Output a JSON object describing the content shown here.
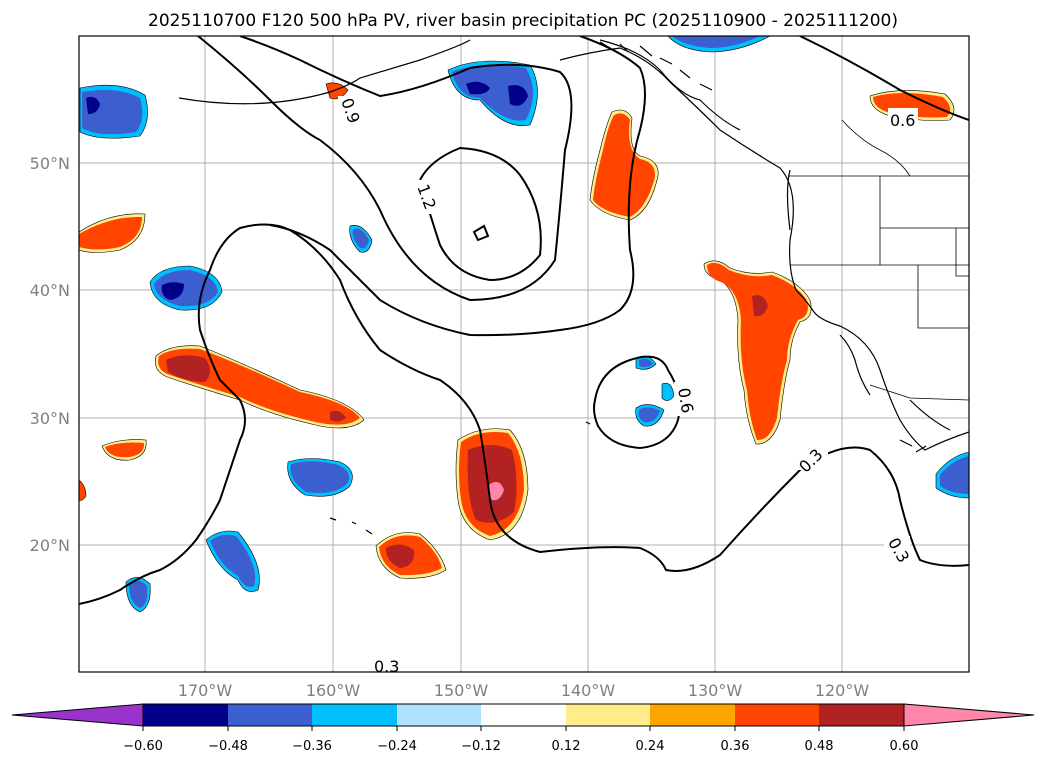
{
  "title": "2025110700 F120 500 hPa PV, river basin precipitation PC (2025110900 - 2025111200)",
  "lat_ticks": [
    "50°N",
    "40°N",
    "30°N",
    "20°N"
  ],
  "lon_ticks": [
    "170°W",
    "160°W",
    "150°W",
    "140°W",
    "130°W",
    "120°W"
  ],
  "colorbar": {
    "bins": [
      "#9933cc",
      "#00008b",
      "#3b5fcf",
      "#00bfff",
      "#b0e2ff",
      "#ffffff",
      "#ffec8b",
      "#ffa500",
      "#ff4500",
      "#b22222",
      "#ff88aa"
    ],
    "labels": [
      "−0.60",
      "−0.48",
      "−0.36",
      "−0.24",
      "−0.12",
      "0.12",
      "0.24",
      "0.36",
      "0.48",
      "0.60"
    ]
  },
  "contour_labels": [
    "0.6",
    "0.9",
    "1.2",
    "0.6",
    "0.3",
    "0.3",
    "0.3"
  ],
  "colors": {
    "grid": "#b0b0b0",
    "contour": "#000000",
    "coast": "#000000"
  }
}
